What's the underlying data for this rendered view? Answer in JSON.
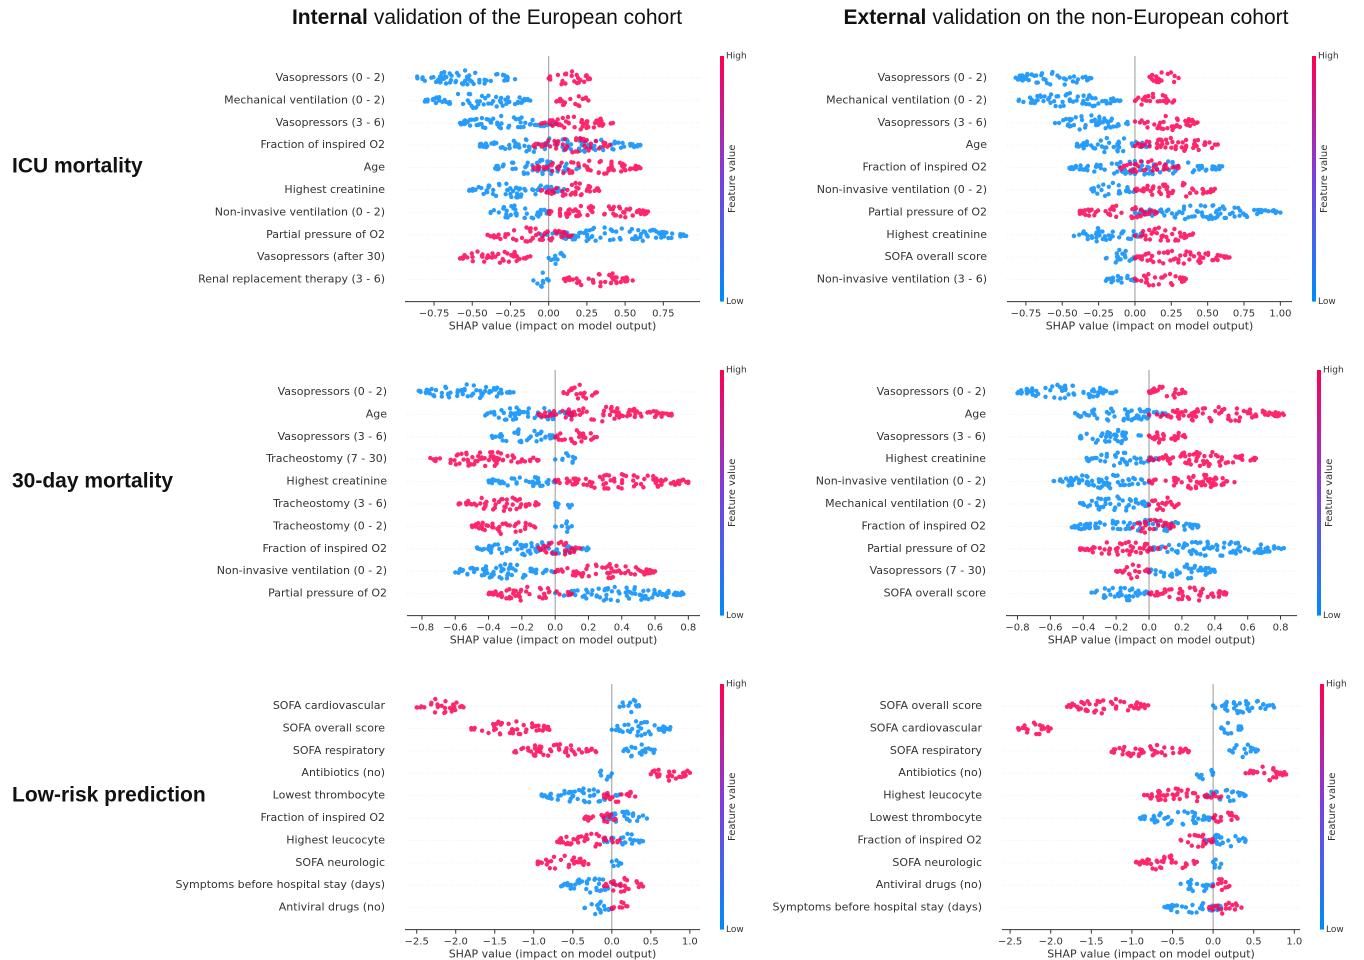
{
  "column_titles": [
    {
      "bold": "Internal",
      "rest": "validation of the European cohort"
    },
    {
      "bold": "External",
      "rest": "validation on the non-European cohort"
    }
  ],
  "row_labels": [
    "ICU mortality",
    "30-day mortality",
    "Low-risk prediction"
  ],
  "colors": {
    "low": "#008bfb",
    "high": "#ff0052"
  },
  "chart_data": [
    {
      "type": "beeswarm",
      "xlabel": "SHAP value (impact on model output)",
      "colorbar": {
        "high": "High",
        "low": "Low",
        "label": "Feature value"
      },
      "categories": [
        "Vasopressors (0 - 2)",
        "Mechanical ventilation (0 - 2)",
        "Vasopressors (3 - 6)",
        "Fraction of inspired O2",
        "Age",
        "Highest creatinine",
        "Non-invasive ventilation (0 - 2)",
        "Partial pressure of O2",
        "Vasopressors (after 30)",
        "Renal replacement therapy (3 - 6)"
      ],
      "low_range": [
        [
          -0.86,
          -0.22
        ],
        [
          -0.81,
          -0.12
        ],
        [
          -0.58,
          0.05
        ],
        [
          -0.45,
          0.6
        ],
        [
          -0.35,
          0.2
        ],
        [
          -0.52,
          0.1
        ],
        [
          -0.38,
          0.0
        ],
        [
          -0.05,
          0.9
        ],
        [
          0.0,
          0.1
        ],
        [
          -0.1,
          0.0
        ]
      ],
      "high_range": [
        [
          0.0,
          0.27
        ],
        [
          0.05,
          0.26
        ],
        [
          -0.05,
          0.42
        ],
        [
          -0.1,
          0.4
        ],
        [
          -0.1,
          0.6
        ],
        [
          -0.05,
          0.33
        ],
        [
          0.0,
          0.65
        ],
        [
          -0.4,
          0.15
        ],
        [
          -0.58,
          -0.12
        ],
        [
          0.1,
          0.55
        ]
      ],
      "xlim": [
        -0.94,
        0.99
      ],
      "xticks": [
        {
          "value": -0.75,
          "label": "−0.75"
        },
        {
          "value": -0.5,
          "label": "−0.50"
        },
        {
          "value": -0.25,
          "label": "−0.25"
        },
        {
          "value": 0,
          "label": "0.00"
        },
        0.25,
        {
          "value": 0.5,
          "label": "0.50"
        },
        0.75
      ]
    },
    {
      "type": "beeswarm",
      "xlabel": "SHAP value (impact on model output)",
      "colorbar": {
        "high": "High",
        "low": "Low",
        "label": "Feature value"
      },
      "categories": [
        "Vasopressors (0 - 2)",
        "Mechanical ventilation (0 - 2)",
        "Vasopressors (3 - 6)",
        "Age",
        "Fraction of inspired O2",
        "Non-invasive ventilation (0 - 2)",
        "Partial pressure of O2",
        "Highest creatinine",
        "SOFA overall score",
        "Non-invasive ventilation (3 - 6)"
      ],
      "low_range": [
        [
          -0.82,
          -0.3
        ],
        [
          -0.8,
          -0.1
        ],
        [
          -0.55,
          -0.05
        ],
        [
          -0.4,
          0.1
        ],
        [
          -0.45,
          0.6
        ],
        [
          -0.3,
          0.0
        ],
        [
          0.0,
          1.0
        ],
        [
          -0.42,
          0.05
        ],
        [
          -0.2,
          0.0
        ],
        [
          -0.2,
          0.0
        ]
      ],
      "high_range": [
        [
          0.1,
          0.3
        ],
        [
          0.0,
          0.27
        ],
        [
          0.0,
          0.43
        ],
        [
          0.0,
          0.57
        ],
        [
          -0.1,
          0.3
        ],
        [
          0.0,
          0.55
        ],
        [
          -0.38,
          0.15
        ],
        [
          0.0,
          0.4
        ],
        [
          0.0,
          0.65
        ],
        [
          0.0,
          0.35
        ]
      ],
      "xlim": [
        -0.88,
        1.08
      ],
      "xticks": [
        {
          "value": -0.75,
          "label": "−0.75"
        },
        {
          "value": -0.5,
          "label": "−0.50"
        },
        {
          "value": -0.25,
          "label": "−0.25"
        },
        {
          "value": 0,
          "label": "0.00"
        },
        0.25,
        {
          "value": 0.5,
          "label": "0.50"
        },
        0.75,
        {
          "value": 1,
          "label": "1.00"
        }
      ]
    },
    {
      "type": "beeswarm",
      "xlabel": "SHAP value (impact on model output)",
      "colorbar": {
        "high": "High",
        "low": "Low",
        "label": "Feature value"
      },
      "categories": [
        "Vasopressors (0 - 2)",
        "Age",
        "Vasopressors (3 - 6)",
        "Tracheostomy (7 - 30)",
        "Highest creatinine",
        "Tracheostomy (3 - 6)",
        "Tracheostomy (0 - 2)",
        "Fraction of inspired O2",
        "Non-invasive ventilation (0 - 2)",
        "Partial pressure of O2"
      ],
      "low_range": [
        [
          -0.82,
          -0.25
        ],
        [
          -0.42,
          0.1
        ],
        [
          -0.38,
          0.0
        ],
        [
          0.0,
          0.12
        ],
        [
          -0.4,
          0.0
        ],
        [
          0.0,
          0.1
        ],
        [
          0.0,
          0.1
        ],
        [
          -0.47,
          0.2
        ],
        [
          -0.6,
          0.0
        ],
        [
          0.0,
          0.77
        ]
      ],
      "high_range": [
        [
          0.05,
          0.25
        ],
        [
          -0.1,
          0.7
        ],
        [
          0.0,
          0.25
        ],
        [
          -0.75,
          -0.1
        ],
        [
          0.0,
          0.8
        ],
        [
          -0.58,
          -0.1
        ],
        [
          -0.5,
          -0.12
        ],
        [
          -0.1,
          0.15
        ],
        [
          0.0,
          0.6
        ],
        [
          -0.4,
          0.1
        ]
      ],
      "xlim": [
        -0.89,
        0.87
      ],
      "xticks": [
        {
          "value": -0.8,
          "label": "−0.8"
        },
        {
          "value": -0.6,
          "label": "−0.6"
        },
        {
          "value": -0.4,
          "label": "−0.4"
        },
        {
          "value": -0.2,
          "label": "−0.2"
        },
        {
          "value": 0,
          "label": "0.0"
        },
        0.2,
        0.4,
        0.6,
        0.8
      ]
    },
    {
      "type": "beeswarm",
      "xlabel": "SHAP value (impact on model output)",
      "colorbar": {
        "high": "High",
        "low": "Low",
        "label": "Feature value"
      },
      "categories": [
        "Vasopressors (0 - 2)",
        "Age",
        "Vasopressors (3 - 6)",
        "Highest creatinine",
        "Non-invasive ventilation (0 - 2)",
        "Mechanical ventilation (0 - 2)",
        "Fraction of inspired O2",
        "Partial pressure of O2",
        "Vasopressors (7 - 30)",
        "SOFA overall score"
      ],
      "low_range": [
        [
          -0.8,
          -0.2
        ],
        [
          -0.45,
          0.1
        ],
        [
          -0.42,
          -0.05
        ],
        [
          -0.38,
          0.05
        ],
        [
          -0.58,
          0.0
        ],
        [
          -0.42,
          0.0
        ],
        [
          -0.47,
          0.3
        ],
        [
          0.0,
          0.82
        ],
        [
          0.0,
          0.4
        ],
        [
          -0.35,
          0.0
        ]
      ],
      "high_range": [
        [
          0.0,
          0.22
        ],
        [
          0.0,
          0.82
        ],
        [
          0.0,
          0.22
        ],
        [
          0.0,
          0.65
        ],
        [
          0.0,
          0.52
        ],
        [
          0.0,
          0.18
        ],
        [
          -0.1,
          0.15
        ],
        [
          -0.42,
          0.1
        ],
        [
          -0.2,
          0.0
        ],
        [
          0.0,
          0.47
        ]
      ],
      "xlim": [
        -0.87,
        0.9
      ],
      "xticks": [
        {
          "value": -0.8,
          "label": "−0.8"
        },
        {
          "value": -0.6,
          "label": "−0.6"
        },
        {
          "value": -0.4,
          "label": "−0.4"
        },
        {
          "value": -0.2,
          "label": "−0.2"
        },
        {
          "value": 0,
          "label": "0.0"
        },
        0.2,
        0.4,
        0.6,
        0.8
      ]
    },
    {
      "type": "beeswarm",
      "xlabel": "SHAP value (impact on model output)",
      "colorbar": {
        "high": "High",
        "low": "Low",
        "label": "Feature value"
      },
      "categories": [
        "SOFA cardiovascular",
        "SOFA overall score",
        "SOFA respiratory",
        "Antibiotics (no)",
        "Lowest thrombocyte",
        "Fraction of inspired O2",
        "Highest leucocyte",
        "SOFA neurologic",
        "Symptoms before hospital stay (days)",
        "Antiviral drugs (no)"
      ],
      "low_range": [
        [
          0.1,
          0.35
        ],
        [
          0.0,
          0.75
        ],
        [
          0.15,
          0.55
        ],
        [
          -0.15,
          0.0
        ],
        [
          -0.9,
          0.1
        ],
        [
          -0.1,
          0.45
        ],
        [
          -0.1,
          0.4
        ],
        [
          0.0,
          0.12
        ],
        [
          -0.65,
          0.1
        ],
        [
          -0.35,
          0.0
        ]
      ],
      "high_range": [
        [
          -2.5,
          -1.9
        ],
        [
          -1.8,
          -0.8
        ],
        [
          -1.25,
          -0.2
        ],
        [
          0.5,
          1.0
        ],
        [
          -0.1,
          0.3
        ],
        [
          -0.35,
          0.05
        ],
        [
          -0.7,
          0.1
        ],
        [
          -0.95,
          -0.3
        ],
        [
          -0.1,
          0.4
        ],
        [
          0.0,
          0.2
        ]
      ],
      "xlim": [
        -2.65,
        1.13
      ],
      "xticks": [
        {
          "value": -2.5,
          "label": "−2.5"
        },
        {
          "value": -2,
          "label": "−2.0"
        },
        {
          "value": -1.5,
          "label": "−1.5"
        },
        {
          "value": -1,
          "label": "−1.0"
        },
        {
          "value": -0.5,
          "label": "−0.5"
        },
        {
          "value": 0,
          "label": "0.0"
        },
        0.5,
        {
          "value": 1,
          "label": "1.0"
        }
      ]
    },
    {
      "type": "beeswarm",
      "xlabel": "SHAP value (impact on model output)",
      "colorbar": {
        "high": "High",
        "low": "Low",
        "label": "Feature value"
      },
      "categories": [
        "SOFA overall score",
        "SOFA cardiovascular",
        "SOFA respiratory",
        "Antibiotics (no)",
        "Highest leucocyte",
        "Lowest thrombocyte",
        "Fraction of inspired O2",
        "SOFA neurologic",
        "Antiviral drugs (no)",
        "Symptoms before hospital stay (days)"
      ],
      "low_range": [
        [
          0.0,
          0.75
        ],
        [
          0.1,
          0.35
        ],
        [
          0.2,
          0.55
        ],
        [
          -0.2,
          0.0
        ],
        [
          -0.1,
          0.4
        ],
        [
          -0.9,
          0.0
        ],
        [
          -0.1,
          0.4
        ],
        [
          0.0,
          0.1
        ],
        [
          -0.4,
          0.0
        ],
        [
          -0.6,
          0.1
        ]
      ],
      "high_range": [
        [
          -1.8,
          -0.8
        ],
        [
          -2.4,
          -2.0
        ],
        [
          -1.25,
          -0.3
        ],
        [
          0.4,
          0.9
        ],
        [
          -0.85,
          0.1
        ],
        [
          0.0,
          0.3
        ],
        [
          -0.4,
          0.0
        ],
        [
          -0.95,
          -0.2
        ],
        [
          0.0,
          0.2
        ],
        [
          -0.05,
          0.35
        ]
      ],
      "xlim": [
        -2.6,
        1.07
      ],
      "xticks": [
        {
          "value": -2.5,
          "label": "−2.5"
        },
        {
          "value": -2,
          "label": "−2.0"
        },
        {
          "value": -1.5,
          "label": "−1.5"
        },
        {
          "value": -1,
          "label": "−1.0"
        },
        {
          "value": -0.5,
          "label": "−0.5"
        },
        {
          "value": 0,
          "label": "0.0"
        },
        0.5,
        {
          "value": 1,
          "label": "1.0"
        }
      ]
    }
  ]
}
